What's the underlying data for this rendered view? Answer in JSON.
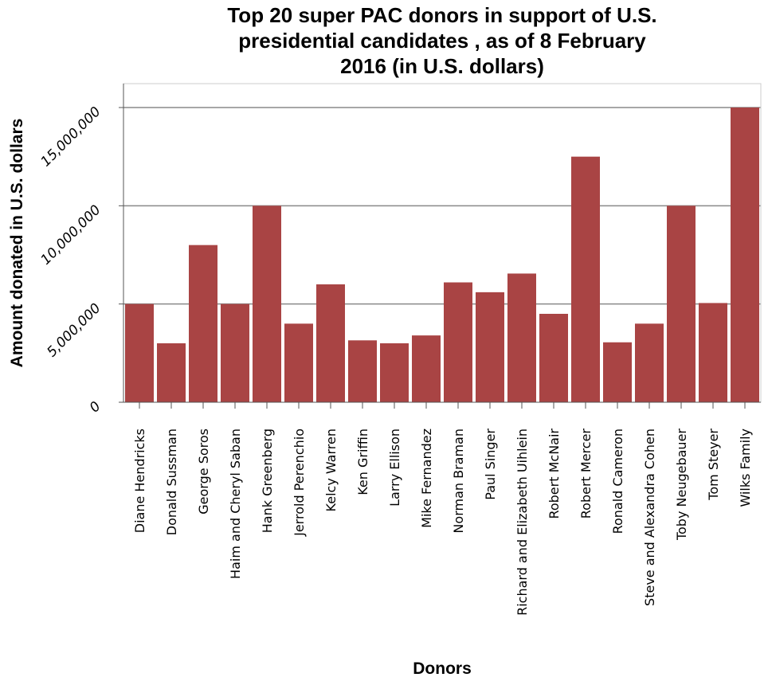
{
  "chart_data": {
    "type": "bar",
    "title_lines": [
      "Top 20 super PAC donors in support of U.S.",
      "presidential candidates , as of 8 February",
      "2016 (in U.S. dollars)"
    ],
    "xlabel": "Donors",
    "ylabel": "Amount donated in U.S. dollars",
    "ylim": [
      0,
      15000000
    ],
    "yticks": [
      0,
      5000000,
      10000000,
      15000000
    ],
    "ytick_labels": [
      "0",
      "5,000,000",
      "10,000,000",
      "15,000,000"
    ],
    "grid": "horizontal",
    "colors": {
      "bar": "#a94444",
      "grid": "#8a8a8a",
      "axis": "#555555"
    },
    "categories": [
      "Diane Hendricks",
      "Donald Sussman",
      "George Soros",
      "Haim and Cheryl Saban",
      "Hank Greenberg",
      "Jerrold Perenchio",
      "Kelcy Warren",
      "Ken Griffin",
      "Larry Ellison",
      "Mike Fernandez",
      "Norman Braman",
      "Paul Singer",
      "Richard and Elizabeth Uihlein",
      "Robert McNair",
      "Robert Mercer",
      "Ronald Cameron",
      "Steve and Alexandra Cohen",
      "Toby Neugebauer",
      "Tom Steyer",
      "Wilks Family"
    ],
    "values": [
      5000000,
      3000000,
      8000000,
      5000000,
      10000000,
      4000000,
      6000000,
      3150000,
      3000000,
      3400000,
      6100000,
      5600000,
      6550000,
      4500000,
      12500000,
      3050000,
      4000000,
      10000000,
      5050000,
      15000000
    ]
  }
}
